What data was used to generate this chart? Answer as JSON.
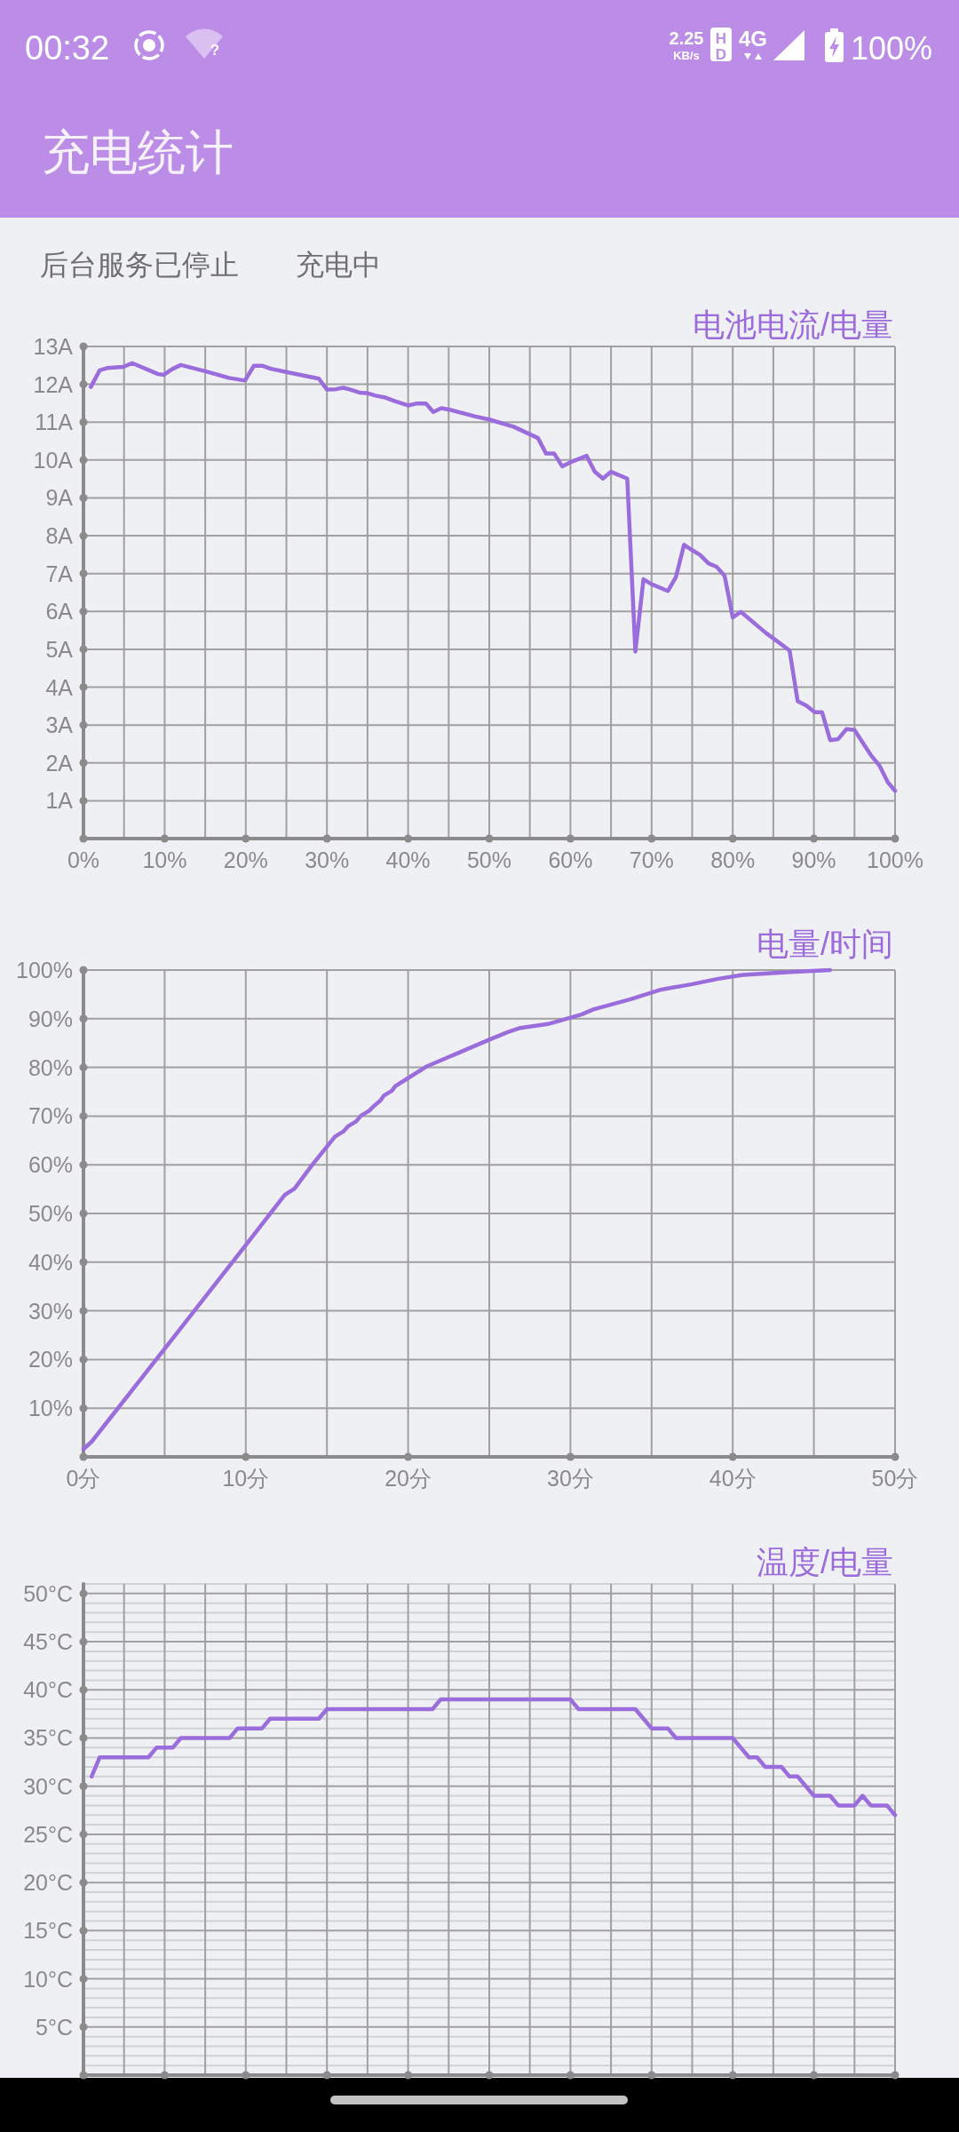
{
  "chart_data": [
    {
      "type": "other",
      "title": "充电统计",
      "annotations": [
        "00:32",
        "?",
        "2.25",
        "KB/s",
        "HD",
        "4G",
        "100%",
        "后台服务已停止",
        "充电中"
      ]
    },
    {
      "type": "line",
      "title": "电池电流/电量",
      "color": "#9b6ddc",
      "x": [
        0.9,
        2,
        2.9,
        4.9,
        6,
        9.2,
        9.9,
        11,
        12,
        15.1,
        17.9,
        19.9,
        21,
        22,
        23.1,
        25.1,
        29,
        30,
        31.1,
        32,
        32.9,
        34,
        34.9,
        36,
        37.2,
        38.3,
        40,
        41,
        42.2,
        43.1,
        44.1,
        45.1,
        48.3,
        50,
        53,
        56,
        57,
        58,
        59,
        60.2,
        62,
        63,
        64,
        65,
        67,
        68,
        69,
        70,
        72,
        73,
        74,
        75,
        76,
        77,
        78,
        79,
        80,
        81,
        84.1,
        85,
        87,
        88,
        89.1,
        90.1,
        91,
        92,
        93,
        94,
        95,
        97,
        98.1,
        99.1,
        100
      ],
      "values": [
        11.93,
        12.37,
        12.43,
        12.46,
        12.56,
        12.27,
        12.25,
        12.41,
        12.51,
        12.34,
        12.17,
        12.1,
        12.49,
        12.49,
        12.41,
        12.32,
        12.15,
        11.86,
        11.87,
        11.91,
        11.86,
        11.78,
        11.77,
        11.7,
        11.65,
        11.56,
        11.44,
        11.49,
        11.49,
        11.27,
        11.37,
        11.33,
        11.15,
        11.07,
        10.88,
        10.58,
        10.17,
        10.17,
        9.83,
        9.96,
        10.11,
        9.69,
        9.51,
        9.69,
        9.51,
        4.94,
        6.85,
        6.72,
        6.54,
        6.91,
        7.76,
        7.62,
        7.49,
        7.27,
        7.18,
        6.94,
        5.84,
        5.99,
        5.43,
        5.29,
        4.97,
        3.63,
        3.51,
        3.34,
        3.34,
        2.6,
        2.63,
        2.89,
        2.87,
        2.21,
        1.92,
        1.49,
        1.26
      ],
      "xlim": [
        0,
        100
      ],
      "ylim": [
        0,
        13
      ],
      "xticks": [
        {
          "value": 0,
          "label": "0%"
        },
        {
          "value": 5,
          "label": null
        },
        {
          "value": 10,
          "label": "10%"
        },
        {
          "value": 15,
          "label": null
        },
        {
          "value": 20,
          "label": "20%"
        },
        {
          "value": 25,
          "label": null
        },
        {
          "value": 30,
          "label": "30%"
        },
        {
          "value": 35,
          "label": null
        },
        {
          "value": 40,
          "label": "40%"
        },
        {
          "value": 45,
          "label": null
        },
        {
          "value": 50,
          "label": "50%"
        },
        {
          "value": 55,
          "label": null
        },
        {
          "value": 60,
          "label": "60%"
        },
        {
          "value": 65,
          "label": null
        },
        {
          "value": 70,
          "label": "70%"
        },
        {
          "value": 75,
          "label": null
        },
        {
          "value": 80,
          "label": "80%"
        },
        {
          "value": 85,
          "label": null
        },
        {
          "value": 90,
          "label": "90%"
        },
        {
          "value": 95,
          "label": null
        },
        {
          "value": 100,
          "label": "100%"
        }
      ],
      "yticks": [
        {
          "value": 1,
          "label": "1A"
        },
        {
          "value": 2,
          "label": "2A"
        },
        {
          "value": 3,
          "label": "3A"
        },
        {
          "value": 4,
          "label": "4A"
        },
        {
          "value": 5,
          "label": "5A"
        },
        {
          "value": 6,
          "label": "6A"
        },
        {
          "value": 7,
          "label": "7A"
        },
        {
          "value": 8,
          "label": "8A"
        },
        {
          "value": 9,
          "label": "9A"
        },
        {
          "value": 10,
          "label": "10A"
        },
        {
          "value": 11,
          "label": "11A"
        },
        {
          "value": 12,
          "label": "12A"
        },
        {
          "value": 13,
          "label": "13A"
        }
      ],
      "grid": true
    },
    {
      "type": "line",
      "title": "电量/时间",
      "color": "#9b6ddc",
      "x": [
        0,
        0.5,
        5,
        10,
        12.4,
        13,
        14.1,
        15.5,
        16,
        16.3,
        16.8,
        17.1,
        17.6,
        17.9,
        18.3,
        18.5,
        19,
        19.2,
        19.9,
        21.2,
        25,
        26.1,
        26.9,
        28.6,
        30,
        30.7,
        31.4,
        33.7,
        35.6,
        37.5,
        39.1,
        40.6,
        43.5,
        46
      ],
      "values": [
        1.6,
        3.1,
        22.2,
        43.5,
        53.8,
        55.1,
        60,
        65.8,
        66.8,
        67.9,
        68.9,
        70.1,
        71.1,
        72.1,
        73.2,
        74.2,
        75.2,
        76.1,
        77.6,
        80.3,
        85.7,
        87.2,
        88.1,
        88.9,
        90.2,
        90.9,
        91.9,
        94,
        96,
        97.1,
        98.2,
        99,
        99.6,
        100
      ],
      "xlim": [
        0,
        50
      ],
      "ylim": [
        0,
        100
      ],
      "xticks": [
        {
          "value": 0,
          "label": "0分"
        },
        {
          "value": 5,
          "label": null
        },
        {
          "value": 10,
          "label": "10分"
        },
        {
          "value": 15,
          "label": null
        },
        {
          "value": 20,
          "label": "20分"
        },
        {
          "value": 25,
          "label": null
        },
        {
          "value": 30,
          "label": "30分"
        },
        {
          "value": 35,
          "label": null
        },
        {
          "value": 40,
          "label": "40分"
        },
        {
          "value": 45,
          "label": null
        },
        {
          "value": 50,
          "label": "50分"
        }
      ],
      "yticks": [
        {
          "value": 10,
          "label": "10%"
        },
        {
          "value": 20,
          "label": "20%"
        },
        {
          "value": 30,
          "label": "30%"
        },
        {
          "value": 40,
          "label": "40%"
        },
        {
          "value": 50,
          "label": "50%"
        },
        {
          "value": 60,
          "label": "60%"
        },
        {
          "value": 70,
          "label": "70%"
        },
        {
          "value": 80,
          "label": "80%"
        },
        {
          "value": 90,
          "label": "90%"
        },
        {
          "value": 100,
          "label": "100%"
        }
      ],
      "grid": true
    },
    {
      "type": "line",
      "title": "温度/电量",
      "color": "#9b6ddc",
      "categories": [
        null,
        null,
        null,
        null,
        null,
        null,
        null,
        null,
        null,
        null,
        null,
        null,
        null,
        null,
        null,
        null,
        null,
        null,
        null,
        null,
        null,
        null,
        null,
        null,
        null,
        null,
        null,
        null,
        null,
        null,
        null,
        null,
        null,
        null,
        null,
        null,
        null,
        null,
        null,
        null,
        null,
        null,
        null,
        null,
        null,
        null,
        null,
        null,
        null,
        null,
        null,
        null,
        null,
        null,
        null,
        null,
        null,
        null,
        null,
        null,
        null,
        null,
        null,
        null,
        null,
        null,
        null,
        null,
        null,
        null,
        null,
        null,
        null,
        null,
        null,
        null,
        null,
        null,
        null,
        null,
        null,
        null,
        null,
        null,
        null,
        null,
        null,
        null,
        null,
        null,
        null,
        null,
        null,
        null,
        null,
        null,
        null,
        null,
        null,
        null,
        null
      ],
      "values": [
        null,
        31,
        33,
        33,
        33,
        33,
        33,
        33,
        33,
        34,
        34,
        34,
        35,
        35,
        35,
        35,
        35,
        35,
        35,
        36,
        36,
        36,
        36,
        37,
        37,
        37,
        37,
        37,
        37,
        37,
        38,
        38,
        38,
        38,
        38,
        38,
        38,
        38,
        38,
        38,
        38,
        38,
        38,
        38,
        39,
        39,
        39,
        39,
        39,
        39,
        39,
        39,
        39,
        39,
        39,
        39,
        39,
        39,
        39,
        39,
        39,
        38,
        38,
        38,
        38,
        38,
        38,
        38,
        38,
        37,
        36,
        36,
        36,
        35,
        35,
        35,
        35,
        35,
        35,
        35,
        35,
        34,
        33,
        33,
        32,
        32,
        32,
        31,
        31,
        30,
        29,
        29,
        29,
        28,
        28,
        28,
        29,
        28,
        28,
        28,
        27
      ],
      "ylim": [
        0,
        51
      ],
      "yticks": [
        {
          "value": 1,
          "label": null
        },
        {
          "value": 2,
          "label": null
        },
        {
          "value": 3,
          "label": null
        },
        {
          "value": 4,
          "label": null
        },
        {
          "value": 5,
          "label": "5°C"
        },
        {
          "value": 6,
          "label": null
        },
        {
          "value": 7,
          "label": null
        },
        {
          "value": 8,
          "label": null
        },
        {
          "value": 9,
          "label": null
        },
        {
          "value": 10,
          "label": "10°C"
        },
        {
          "value": 11,
          "label": null
        },
        {
          "value": 12,
          "label": null
        },
        {
          "value": 13,
          "label": null
        },
        {
          "value": 14,
          "label": null
        },
        {
          "value": 15,
          "label": "15°C"
        },
        {
          "value": 16,
          "label": null
        },
        {
          "value": 17,
          "label": null
        },
        {
          "value": 18,
          "label": null
        },
        {
          "value": 19,
          "label": null
        },
        {
          "value": 20,
          "label": "20°C"
        },
        {
          "value": 21,
          "label": null
        },
        {
          "value": 22,
          "label": null
        },
        {
          "value": 23,
          "label": null
        },
        {
          "value": 24,
          "label": null
        },
        {
          "value": 25,
          "label": "25°C"
        },
        {
          "value": 26,
          "label": null
        },
        {
          "value": 27,
          "label": null
        },
        {
          "value": 28,
          "label": null
        },
        {
          "value": 29,
          "label": null
        },
        {
          "value": 30,
          "label": "30°C"
        },
        {
          "value": 31,
          "label": null
        },
        {
          "value": 32,
          "label": null
        },
        {
          "value": 33,
          "label": null
        },
        {
          "value": 34,
          "label": null
        },
        {
          "value": 35,
          "label": "35°C"
        },
        {
          "value": 36,
          "label": null
        },
        {
          "value": 37,
          "label": null
        },
        {
          "value": 38,
          "label": null
        },
        {
          "value": 39,
          "label": null
        },
        {
          "value": 40,
          "label": "40°C"
        },
        {
          "value": 41,
          "label": null
        },
        {
          "value": 42,
          "label": null
        },
        {
          "value": 43,
          "label": null
        },
        {
          "value": 44,
          "label": null
        },
        {
          "value": 45,
          "label": "45°C"
        },
        {
          "value": 46,
          "label": null
        },
        {
          "value": 47,
          "label": null
        },
        {
          "value": 48,
          "label": null
        },
        {
          "value": 49,
          "label": null
        },
        {
          "value": 50,
          "label": "50°C"
        }
      ],
      "tick_labels": "y",
      "grid": true
    }
  ]
}
